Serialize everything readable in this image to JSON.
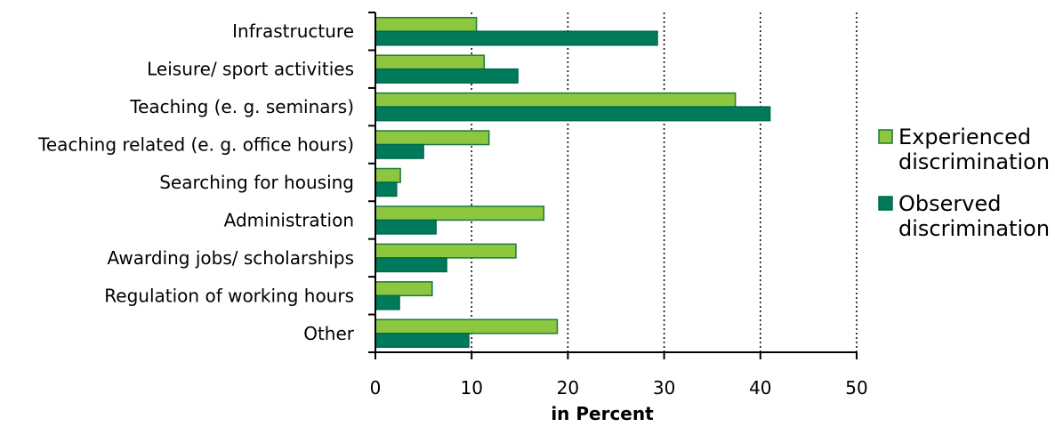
{
  "chart_data": {
    "type": "bar",
    "orientation": "horizontal",
    "categories": [
      "Infrastructure",
      "Leisure/ sport activities",
      "Teaching (e. g. seminars)",
      "Teaching related (e. g. office hours)",
      "Searching for housing",
      "Administration",
      "Awarding jobs/ scholarships",
      "Regulation of working hours",
      "Other"
    ],
    "series": [
      {
        "name": "Experienced discrimination",
        "legend_lines": [
          "Experienced",
          "discrimination"
        ],
        "color": "#8dc63f",
        "stroke": "#1a7a3a",
        "values": [
          10.5,
          11.3,
          37.4,
          11.8,
          2.6,
          17.5,
          14.6,
          5.9,
          18.9
        ]
      },
      {
        "name": "Observed discrimination",
        "legend_lines": [
          "Observed",
          "discrimination"
        ],
        "color": "#007a5a",
        "stroke": "#00694d",
        "values": [
          29.3,
          14.8,
          41.0,
          5.0,
          2.2,
          6.3,
          7.4,
          2.5,
          9.7
        ]
      }
    ],
    "xlabel": "in Percent",
    "ylabel": "",
    "xlim": [
      0,
      50
    ],
    "xticks": [
      0,
      10,
      20,
      30,
      40,
      50
    ],
    "grid": "vertical dotted",
    "legend_position": "right"
  }
}
